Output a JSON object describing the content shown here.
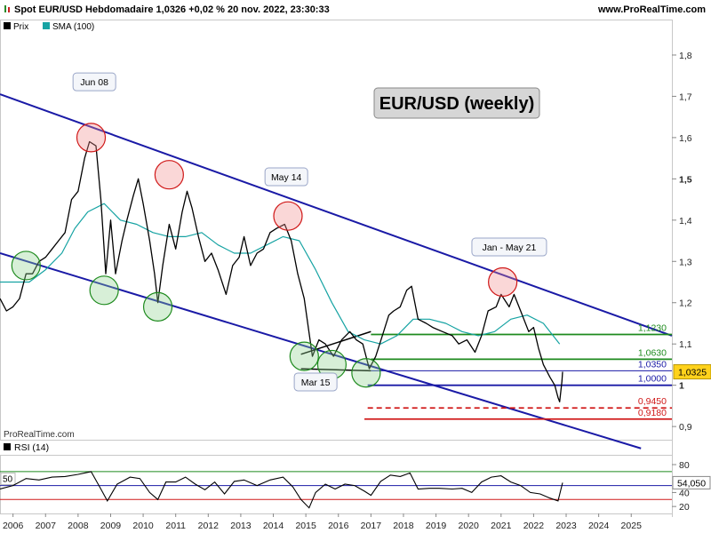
{
  "header": {
    "title": "Spot EUR/USD Hebdomadaire 1,0326 +0,02 % 20 nov. 2022, 23:30:33",
    "site": "www.ProRealTime.com"
  },
  "legend": [
    {
      "label": "Prix",
      "color": "#000000"
    },
    {
      "label": "SMA (100)",
      "color": "#16a3a3"
    }
  ],
  "chart_title": "EUR/USD (weekly)",
  "watermark": "ProRealTime.com",
  "annotations": [
    {
      "text": "Jun 08",
      "x": 2008.5,
      "y": 1.735
    },
    {
      "text": "May 14",
      "x": 2014.4,
      "y": 1.505
    },
    {
      "text": "Jan - May 21",
      "x": 2021.25,
      "y": 1.335
    },
    {
      "text": "Mar 15",
      "x": 2015.3,
      "y": 1.008
    }
  ],
  "chart_data": {
    "type": "line",
    "price_panel": {
      "xlim": [
        2005.6,
        2026.25
      ],
      "ylim": [
        0.868,
        1.886
      ],
      "x_ticks": [
        "2006",
        "2007",
        "2008",
        "2009",
        "2010",
        "2011",
        "2012",
        "2013",
        "2014",
        "2015",
        "2016",
        "2017",
        "2018",
        "2019",
        "2020",
        "2021",
        "2022",
        "2023",
        "2024",
        "2025"
      ],
      "x_tick_values": [
        2006,
        2007,
        2008,
        2009,
        2010,
        2011,
        2012,
        2013,
        2014,
        2015,
        2016,
        2017,
        2018,
        2019,
        2020,
        2021,
        2022,
        2023,
        2024,
        2025
      ],
      "y_ticks": [
        {
          "label": "1,8",
          "value": 1.8
        },
        {
          "label": "1,7",
          "value": 1.7
        },
        {
          "label": "1,6",
          "value": 1.6
        },
        {
          "label": "1,5",
          "value": 1.5,
          "bold": true
        },
        {
          "label": "1,4",
          "value": 1.4
        },
        {
          "label": "1,3",
          "value": 1.3
        },
        {
          "label": "1,2",
          "value": 1.2
        },
        {
          "label": "1,1",
          "value": 1.1
        },
        {
          "label": "1",
          "value": 1.0,
          "bold": true
        },
        {
          "label": "0,9",
          "value": 0.9
        }
      ],
      "last_price": {
        "label": "1,0325",
        "value": 1.0325,
        "color": "#ffd21c"
      },
      "series": [
        {
          "name": "Prix",
          "color": "#000000",
          "points": [
            [
              2005.6,
              1.21
            ],
            [
              2005.8,
              1.18
            ],
            [
              2006.0,
              1.19
            ],
            [
              2006.2,
              1.21
            ],
            [
              2006.4,
              1.27
            ],
            [
              2006.6,
              1.27
            ],
            [
              2006.8,
              1.3
            ],
            [
              2007.0,
              1.31
            ],
            [
              2007.2,
              1.33
            ],
            [
              2007.4,
              1.35
            ],
            [
              2007.6,
              1.37
            ],
            [
              2007.8,
              1.45
            ],
            [
              2008.0,
              1.47
            ],
            [
              2008.2,
              1.55
            ],
            [
              2008.35,
              1.59
            ],
            [
              2008.55,
              1.58
            ],
            [
              2008.7,
              1.45
            ],
            [
              2008.85,
              1.27
            ],
            [
              2009.0,
              1.4
            ],
            [
              2009.15,
              1.27
            ],
            [
              2009.35,
              1.35
            ],
            [
              2009.5,
              1.4
            ],
            [
              2009.7,
              1.46
            ],
            [
              2009.85,
              1.5
            ],
            [
              2010.0,
              1.44
            ],
            [
              2010.2,
              1.35
            ],
            [
              2010.35,
              1.27
            ],
            [
              2010.45,
              1.2
            ],
            [
              2010.6,
              1.29
            ],
            [
              2010.8,
              1.39
            ],
            [
              2011.0,
              1.33
            ],
            [
              2011.2,
              1.42
            ],
            [
              2011.35,
              1.47
            ],
            [
              2011.5,
              1.43
            ],
            [
              2011.7,
              1.36
            ],
            [
              2011.9,
              1.3
            ],
            [
              2012.1,
              1.32
            ],
            [
              2012.3,
              1.28
            ],
            [
              2012.55,
              1.22
            ],
            [
              2012.75,
              1.29
            ],
            [
              2012.95,
              1.31
            ],
            [
              2013.1,
              1.36
            ],
            [
              2013.3,
              1.29
            ],
            [
              2013.5,
              1.32
            ],
            [
              2013.7,
              1.33
            ],
            [
              2013.9,
              1.37
            ],
            [
              2014.1,
              1.38
            ],
            [
              2014.35,
              1.39
            ],
            [
              2014.55,
              1.35
            ],
            [
              2014.75,
              1.27
            ],
            [
              2014.95,
              1.21
            ],
            [
              2015.2,
              1.07
            ],
            [
              2015.4,
              1.11
            ],
            [
              2015.6,
              1.1
            ],
            [
              2015.85,
              1.07
            ],
            [
              2016.1,
              1.11
            ],
            [
              2016.35,
              1.13
            ],
            [
              2016.55,
              1.11
            ],
            [
              2016.75,
              1.1
            ],
            [
              2016.95,
              1.04
            ],
            [
              2017.15,
              1.07
            ],
            [
              2017.35,
              1.12
            ],
            [
              2017.55,
              1.17
            ],
            [
              2017.7,
              1.18
            ],
            [
              2017.9,
              1.19
            ],
            [
              2018.1,
              1.23
            ],
            [
              2018.25,
              1.24
            ],
            [
              2018.45,
              1.16
            ],
            [
              2018.7,
              1.15
            ],
            [
              2018.9,
              1.14
            ],
            [
              2019.2,
              1.13
            ],
            [
              2019.5,
              1.12
            ],
            [
              2019.7,
              1.1
            ],
            [
              2019.95,
              1.11
            ],
            [
              2020.2,
              1.08
            ],
            [
              2020.4,
              1.12
            ],
            [
              2020.6,
              1.18
            ],
            [
              2020.85,
              1.19
            ],
            [
              2021.0,
              1.22
            ],
            [
              2021.25,
              1.19
            ],
            [
              2021.4,
              1.22
            ],
            [
              2021.6,
              1.18
            ],
            [
              2021.85,
              1.13
            ],
            [
              2022.0,
              1.14
            ],
            [
              2022.15,
              1.09
            ],
            [
              2022.3,
              1.05
            ],
            [
              2022.5,
              1.02
            ],
            [
              2022.65,
              1.0
            ],
            [
              2022.75,
              0.97
            ],
            [
              2022.8,
              0.96
            ],
            [
              2022.87,
              1.01
            ],
            [
              2022.89,
              1.0326
            ]
          ]
        },
        {
          "name": "SMA (100)",
          "color": "#16a3a3",
          "points": [
            [
              2005.6,
              1.25
            ],
            [
              2006.5,
              1.25
            ],
            [
              2007.0,
              1.28
            ],
            [
              2007.5,
              1.32
            ],
            [
              2007.9,
              1.38
            ],
            [
              2008.3,
              1.42
            ],
            [
              2008.8,
              1.44
            ],
            [
              2009.3,
              1.4
            ],
            [
              2009.8,
              1.39
            ],
            [
              2010.3,
              1.37
            ],
            [
              2010.8,
              1.36
            ],
            [
              2011.3,
              1.36
            ],
            [
              2011.8,
              1.37
            ],
            [
              2012.3,
              1.34
            ],
            [
              2012.8,
              1.32
            ],
            [
              2013.3,
              1.32
            ],
            [
              2013.8,
              1.34
            ],
            [
              2014.3,
              1.36
            ],
            [
              2014.8,
              1.35
            ],
            [
              2015.3,
              1.28
            ],
            [
              2015.8,
              1.2
            ],
            [
              2016.3,
              1.13
            ],
            [
              2016.8,
              1.11
            ],
            [
              2017.3,
              1.1
            ],
            [
              2017.8,
              1.12
            ],
            [
              2018.3,
              1.16
            ],
            [
              2018.8,
              1.16
            ],
            [
              2019.3,
              1.15
            ],
            [
              2019.8,
              1.13
            ],
            [
              2020.3,
              1.12
            ],
            [
              2020.8,
              1.13
            ],
            [
              2021.3,
              1.16
            ],
            [
              2021.8,
              1.17
            ],
            [
              2022.3,
              1.15
            ],
            [
              2022.8,
              1.1
            ]
          ]
        }
      ],
      "trend_lines": [
        {
          "from": [
            2005.6,
            1.705
          ],
          "to": [
            2026.25,
            1.12
          ],
          "color": "#1a1aa6"
        },
        {
          "from": [
            2005.6,
            1.32
          ],
          "to": [
            2025.3,
            0.847
          ],
          "color": "#1a1aa6"
        },
        {
          "from": [
            2014.85,
            1.075
          ],
          "to": [
            2017.0,
            1.13
          ],
          "color": "#000000",
          "note": "triangle top"
        },
        {
          "from": [
            2014.85,
            1.04
          ],
          "to": [
            2017.0,
            1.035
          ],
          "color": "#000000",
          "note": "triangle bottom"
        }
      ],
      "levels": [
        {
          "label": "1,1230",
          "value": 1.123,
          "from": 2017.0,
          "color": "#1d8a1d",
          "label_color": "#1d8a1d",
          "dashed": false
        },
        {
          "label": "1,0630",
          "value": 1.063,
          "from": 2017.0,
          "color": "#1d8a1d",
          "label_color": "#1d8a1d",
          "dashed": false
        },
        {
          "label": "1,0350",
          "value": 1.035,
          "from": 2017.0,
          "color": "#1a1aa6",
          "label_color": "#1a1aa6",
          "dashed": false,
          "thin": true
        },
        {
          "label": "1,0000",
          "value": 1.0,
          "from": 2016.9,
          "color": "#1a1aa6",
          "label_color": "#1a1aa6",
          "dashed": false
        },
        {
          "label": "0,9450",
          "value": 0.945,
          "from": 2016.9,
          "color": "#d01818",
          "label_color": "#d01818",
          "dashed": true
        },
        {
          "label": "0,9180",
          "value": 0.918,
          "from": 2016.8,
          "color": "#d01818",
          "label_color": "#d01818",
          "dashed": false
        }
      ],
      "circles_red": [
        [
          2008.4,
          1.6
        ],
        [
          2010.8,
          1.51
        ],
        [
          2014.45,
          1.41
        ],
        [
          2021.05,
          1.25
        ]
      ],
      "circles_green": [
        [
          2006.4,
          1.29
        ],
        [
          2008.8,
          1.23
        ],
        [
          2010.45,
          1.19
        ],
        [
          2014.95,
          1.07
        ],
        [
          2015.8,
          1.05
        ],
        [
          2016.85,
          1.03
        ]
      ]
    },
    "rsi_panel": {
      "label": "RSI (14)",
      "ylim": [
        10,
        94
      ],
      "y_ticks": [
        {
          "label": "80",
          "value": 80
        },
        {
          "label": "40",
          "value": 40
        },
        {
          "label": "20",
          "value": 20
        }
      ],
      "upper_line": 70,
      "lower_line": 30,
      "mid_line": 50,
      "mid_label": "50",
      "current": {
        "label": "54,050",
        "value": 54.05
      },
      "series": {
        "name": "RSI",
        "color": "#000000",
        "points": [
          [
            2005.6,
            45
          ],
          [
            2006.0,
            50
          ],
          [
            2006.4,
            60
          ],
          [
            2006.8,
            58
          ],
          [
            2007.2,
            62
          ],
          [
            2007.6,
            63
          ],
          [
            2008.0,
            66
          ],
          [
            2008.4,
            70
          ],
          [
            2008.7,
            45
          ],
          [
            2008.9,
            28
          ],
          [
            2009.2,
            52
          ],
          [
            2009.6,
            62
          ],
          [
            2009.9,
            60
          ],
          [
            2010.2,
            40
          ],
          [
            2010.45,
            30
          ],
          [
            2010.7,
            55
          ],
          [
            2011.0,
            55
          ],
          [
            2011.3,
            62
          ],
          [
            2011.6,
            52
          ],
          [
            2011.9,
            44
          ],
          [
            2012.2,
            55
          ],
          [
            2012.5,
            38
          ],
          [
            2012.8,
            56
          ],
          [
            2013.1,
            58
          ],
          [
            2013.5,
            50
          ],
          [
            2013.9,
            58
          ],
          [
            2014.3,
            62
          ],
          [
            2014.6,
            48
          ],
          [
            2014.85,
            30
          ],
          [
            2015.1,
            18
          ],
          [
            2015.3,
            40
          ],
          [
            2015.6,
            52
          ],
          [
            2015.9,
            45
          ],
          [
            2016.2,
            52
          ],
          [
            2016.5,
            50
          ],
          [
            2016.8,
            42
          ],
          [
            2017.0,
            36
          ],
          [
            2017.3,
            56
          ],
          [
            2017.6,
            65
          ],
          [
            2017.9,
            63
          ],
          [
            2018.2,
            68
          ],
          [
            2018.45,
            45
          ],
          [
            2018.8,
            46
          ],
          [
            2019.1,
            46
          ],
          [
            2019.5,
            45
          ],
          [
            2019.8,
            46
          ],
          [
            2020.1,
            40
          ],
          [
            2020.4,
            55
          ],
          [
            2020.7,
            62
          ],
          [
            2021.0,
            64
          ],
          [
            2021.3,
            55
          ],
          [
            2021.6,
            50
          ],
          [
            2021.9,
            40
          ],
          [
            2022.2,
            38
          ],
          [
            2022.5,
            32
          ],
          [
            2022.75,
            28
          ],
          [
            2022.89,
            54
          ]
        ]
      }
    }
  }
}
